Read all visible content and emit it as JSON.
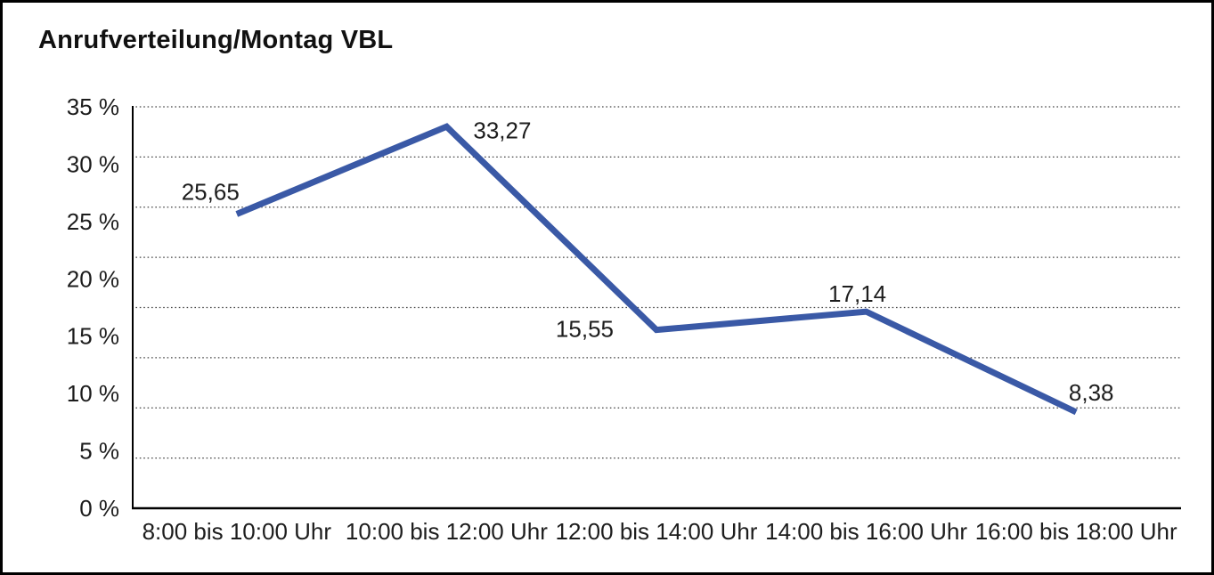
{
  "window": {
    "background": "#ffffff",
    "border_color": "#000000"
  },
  "chart_data": {
    "type": "line",
    "title": "Anrufverteilung/Montag VBL",
    "categories": [
      "8:00 bis 10:00 Uhr",
      "10:00 bis 12:00 Uhr",
      "12:00 bis 14:00 Uhr",
      "14:00 bis 16:00 Uhr",
      "16:00 bis 18:00 Uhr"
    ],
    "values": [
      25.65,
      33.27,
      15.55,
      17.14,
      8.38
    ],
    "point_labels": [
      "25,65",
      "33,27",
      "15,55",
      "17,14",
      "8,38"
    ],
    "y_ticks": [
      "35 %",
      "30 %",
      "25 %",
      "20 %",
      "15 %",
      "10 %",
      "5 %",
      "0 %"
    ],
    "ylim": [
      0,
      35
    ],
    "xlabel": "",
    "ylabel": "",
    "grid": true,
    "gridline_count": 9,
    "legend": "none",
    "line_color": "#3A59A6",
    "axis_color": "#000000",
    "text_color": "#1d1d1d"
  }
}
